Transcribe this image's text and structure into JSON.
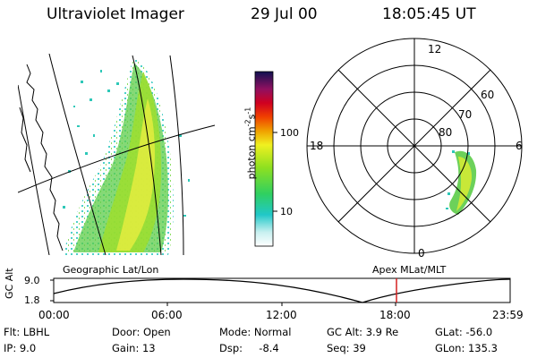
{
  "header": {
    "instrument": "Ultraviolet Imager",
    "date": "29 Jul 00",
    "time": "18:05:45 UT"
  },
  "colorbar": {
    "unit_prefix": "photon cm",
    "unit_exp1": "-2",
    "unit_s": "s",
    "unit_exp2": "-1",
    "tick_100": "100",
    "tick_10": "10"
  },
  "polar": {
    "lat_labels": [
      "60",
      "70",
      "80"
    ],
    "mlt_labels": {
      "top": "12",
      "left": "18",
      "right": "6",
      "bottom": "0"
    }
  },
  "panels": {
    "left_caption": "Geographic Lat/Lon",
    "right_caption": "Apex MLat/MLT"
  },
  "orbit_plot": {
    "ylabel": "GC Alt",
    "y_top": "9.0",
    "y_bottom": "1.8",
    "x_ticks": [
      "00:00",
      "06:00",
      "12:00",
      "18:00",
      "23:59"
    ],
    "marker_time": "18:05",
    "marker_color": "#d42020"
  },
  "footer": {
    "filter": "Flt: LBHL",
    "ip": "IP:  9.0",
    "door": "Door: Open",
    "gain": "Gain: 13",
    "mode": "Mode: Normal",
    "dsp": "Dsp:     -8.4",
    "gcalt": "GC Alt: 3.9 Re",
    "seq": "Seq: 39",
    "glat": "GLat: -56.0",
    "glon": "GLon: 135.3"
  }
}
